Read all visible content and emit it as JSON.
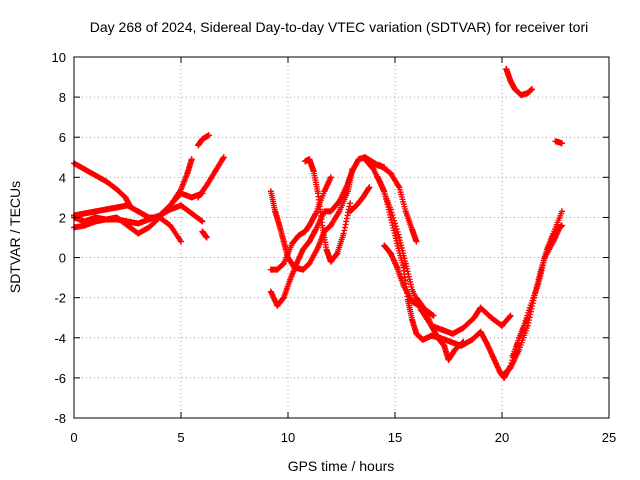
{
  "chart_data": {
    "type": "scatter",
    "title": "Day 268 of 2024, Sidereal Day-to-day VTEC variation (SDTVAR) for receiver tori",
    "xlabel": "GPS time / hours",
    "ylabel": "SDTVAR / TECUs",
    "xlim": [
      0,
      25
    ],
    "ylim": [
      -8,
      10
    ],
    "xticks": [
      "0",
      "5",
      "10",
      "15",
      "20",
      "25"
    ],
    "yticks": [
      "-8",
      "-6",
      "-4",
      "-2",
      "0",
      "2",
      "4",
      "6",
      "8",
      "10"
    ],
    "grid": true,
    "grid_style": "dotted",
    "marker": "+",
    "color": "#ff0000",
    "series": [
      {
        "values": [
          [
            0,
            4.7
          ],
          [
            0.5,
            4.4
          ],
          [
            1,
            4.1
          ],
          [
            1.5,
            3.8
          ],
          [
            2,
            3.4
          ],
          [
            2.4,
            3.0
          ],
          [
            2.6,
            2.6
          ]
        ]
      },
      {
        "values": [
          [
            0,
            2.1
          ],
          [
            0.5,
            2.2
          ],
          [
            1,
            2.3
          ],
          [
            1.5,
            2.4
          ],
          [
            2,
            2.5
          ],
          [
            2.5,
            2.6
          ],
          [
            3,
            2.3
          ],
          [
            3.5,
            2.0
          ],
          [
            4,
            2.0
          ],
          [
            4.5,
            1.6
          ],
          [
            5,
            0.8
          ]
        ]
      },
      {
        "values": [
          [
            0,
            1.5
          ],
          [
            0.5,
            1.6
          ],
          [
            1,
            1.8
          ],
          [
            1.5,
            1.9
          ],
          [
            2,
            2.0
          ],
          [
            2.5,
            1.6
          ],
          [
            3,
            1.2
          ],
          [
            3.5,
            1.5
          ],
          [
            4,
            2.0
          ],
          [
            4.5,
            2.6
          ],
          [
            5,
            3.2
          ],
          [
            5.5,
            3.0
          ],
          [
            6,
            3.2
          ]
        ]
      },
      {
        "values": [
          [
            0,
            2.0
          ],
          [
            0.5,
            1.8
          ],
          [
            1,
            2.0
          ],
          [
            1.5,
            1.9
          ],
          [
            2,
            1.9
          ],
          [
            2.5,
            1.8
          ],
          [
            3,
            1.7
          ],
          [
            3.5,
            1.9
          ],
          [
            4,
            2.1
          ],
          [
            4.5,
            2.4
          ],
          [
            5,
            2.6
          ],
          [
            5.5,
            2.2
          ],
          [
            6,
            1.8
          ]
        ]
      },
      {
        "values": [
          [
            4,
            2.1
          ],
          [
            4.5,
            2.6
          ],
          [
            5,
            3.4
          ],
          [
            5.3,
            4.2
          ],
          [
            5.5,
            4.9
          ]
        ]
      },
      {
        "values": [
          [
            5.8,
            5.6
          ],
          [
            6,
            5.9
          ],
          [
            6.3,
            6.1
          ]
        ]
      },
      {
        "values": [
          [
            5.8,
            3.0
          ],
          [
            6.2,
            3.6
          ],
          [
            6.6,
            4.3
          ],
          [
            7,
            5.0
          ]
        ]
      },
      {
        "values": [
          [
            6,
            1.3
          ],
          [
            6.2,
            1.0
          ]
        ]
      },
      {
        "values": [
          [
            9.2,
            3.3
          ],
          [
            9.4,
            2.3
          ],
          [
            9.6,
            1.6
          ],
          [
            9.8,
            0.8
          ],
          [
            10,
            0.0
          ],
          [
            10.3,
            -0.5
          ],
          [
            10.7,
            -0.6
          ],
          [
            11,
            -0.3
          ],
          [
            11.4,
            0.5
          ],
          [
            11.7,
            1.3
          ],
          [
            12,
            1.6
          ],
          [
            12.4,
            2.3
          ],
          [
            12.8,
            3.3
          ],
          [
            13,
            4.4
          ]
        ]
      },
      {
        "values": [
          [
            9.2,
            -0.6
          ],
          [
            9.5,
            -0.6
          ],
          [
            9.8,
            -0.3
          ],
          [
            10.2,
            0.7
          ],
          [
            10.5,
            1.1
          ],
          [
            10.8,
            1.3
          ],
          [
            11,
            1.6
          ],
          [
            11.3,
            2.2
          ],
          [
            11.7,
            3.3
          ],
          [
            12,
            4.0
          ]
        ]
      },
      {
        "values": [
          [
            10.8,
            4.8
          ],
          [
            11,
            4.9
          ],
          [
            11.2,
            4.3
          ],
          [
            11.4,
            3.2
          ],
          [
            11.6,
            1.6
          ],
          [
            11.8,
            0.4
          ],
          [
            12,
            -0.2
          ],
          [
            12.3,
            0.2
          ],
          [
            12.6,
            1.2
          ],
          [
            12.9,
            2.7
          ]
        ]
      },
      {
        "values": [
          [
            9.2,
            -1.7
          ],
          [
            9.5,
            -2.4
          ],
          [
            9.8,
            -2.0
          ],
          [
            10.1,
            -1.1
          ],
          [
            10.4,
            -0.3
          ],
          [
            10.7,
            0.4
          ],
          [
            11,
            0.8
          ],
          [
            11.3,
            1.4
          ],
          [
            11.7,
            2.3
          ],
          [
            12,
            2.3
          ],
          [
            12.4,
            2.8
          ],
          [
            12.8,
            3.7
          ],
          [
            13,
            4.3
          ],
          [
            13.3,
            4.9
          ],
          [
            13.6,
            5.0
          ],
          [
            13.9,
            4.8
          ],
          [
            14.2,
            4.6
          ],
          [
            14.5,
            4.5
          ]
        ]
      },
      {
        "values": [
          [
            12.9,
            2.3
          ],
          [
            13.2,
            2.6
          ],
          [
            13.5,
            3.0
          ],
          [
            13.8,
            3.5
          ]
        ]
      },
      {
        "values": [
          [
            13.6,
            4.9
          ],
          [
            14,
            4.4
          ],
          [
            14.4,
            3.5
          ],
          [
            14.8,
            2.4
          ],
          [
            15.2,
            1.0
          ],
          [
            15.5,
            -0.3
          ],
          [
            15.8,
            -1.6
          ],
          [
            16.2,
            -2.6
          ],
          [
            16.7,
            -3.4
          ],
          [
            17.2,
            -3.6
          ],
          [
            17.7,
            -3.8
          ],
          [
            18.2,
            -3.5
          ],
          [
            18.7,
            -3.0
          ],
          [
            19,
            -2.5
          ],
          [
            19.5,
            -3.0
          ],
          [
            20,
            -3.4
          ],
          [
            20.4,
            -2.9
          ]
        ]
      },
      {
        "values": [
          [
            14.2,
            4.0
          ],
          [
            14.5,
            3.3
          ],
          [
            14.8,
            2.0
          ],
          [
            15.1,
            0.7
          ],
          [
            15.4,
            -0.5
          ],
          [
            15.6,
            -2.1
          ],
          [
            15.8,
            -3.1
          ],
          [
            16,
            -3.8
          ],
          [
            16.3,
            -4.1
          ],
          [
            16.7,
            -3.9
          ],
          [
            17.1,
            -4.0
          ],
          [
            17.6,
            -4.2
          ],
          [
            18.1,
            -4.4
          ],
          [
            18.6,
            -4.1
          ],
          [
            19,
            -3.7
          ],
          [
            19.3,
            -4.3
          ],
          [
            19.6,
            -5.0
          ],
          [
            19.9,
            -5.7
          ],
          [
            20.1,
            -6.0
          ],
          [
            20.4,
            -5.4
          ],
          [
            20.8,
            -4.0
          ],
          [
            21.2,
            -3.0
          ]
        ]
      },
      {
        "values": [
          [
            13.8,
            4.7
          ],
          [
            14.3,
            4.6
          ],
          [
            14.8,
            4.2
          ],
          [
            15.2,
            3.5
          ],
          [
            15.5,
            2.3
          ],
          [
            15.8,
            1.4
          ],
          [
            16,
            0.8
          ]
        ]
      },
      {
        "values": [
          [
            14.5,
            0.6
          ],
          [
            14.8,
            0.2
          ],
          [
            15.1,
            -0.5
          ],
          [
            15.4,
            -1.4
          ],
          [
            15.8,
            -2.2
          ],
          [
            16.3,
            -2.5
          ],
          [
            16.8,
            -2.9
          ]
        ]
      },
      {
        "values": [
          [
            16,
            -2.0
          ],
          [
            16.4,
            -2.6
          ],
          [
            16.7,
            -3.4
          ],
          [
            17,
            -4.0
          ],
          [
            17.3,
            -4.4
          ],
          [
            17.5,
            -5.1
          ],
          [
            17.8,
            -4.6
          ],
          [
            18.2,
            -4.2
          ]
        ]
      },
      {
        "values": [
          [
            20.1,
            -5.8
          ],
          [
            20.4,
            -5.5
          ],
          [
            20.8,
            -4.6
          ],
          [
            21.2,
            -3.4
          ],
          [
            21.5,
            -2.0
          ],
          [
            21.8,
            -0.7
          ],
          [
            22.1,
            0.4
          ],
          [
            22.4,
            1.2
          ],
          [
            22.8,
            2.3
          ]
        ]
      },
      {
        "values": [
          [
            20.5,
            -4.9
          ],
          [
            20.9,
            -3.8
          ],
          [
            21.3,
            -2.5
          ],
          [
            21.7,
            -1.3
          ],
          [
            22,
            0.0
          ],
          [
            22.4,
            0.8
          ],
          [
            22.7,
            1.5
          ]
        ]
      },
      {
        "values": [
          [
            20.2,
            9.4
          ],
          [
            20.4,
            8.8
          ],
          [
            20.6,
            8.4
          ],
          [
            20.9,
            8.1
          ],
          [
            21.2,
            8.2
          ],
          [
            21.4,
            8.4
          ]
        ]
      },
      {
        "values": [
          [
            22.5,
            5.8
          ],
          [
            22.8,
            5.7
          ]
        ]
      },
      {
        "values": [
          [
            22.6,
            1.4
          ],
          [
            22.8,
            1.6
          ]
        ]
      }
    ]
  }
}
